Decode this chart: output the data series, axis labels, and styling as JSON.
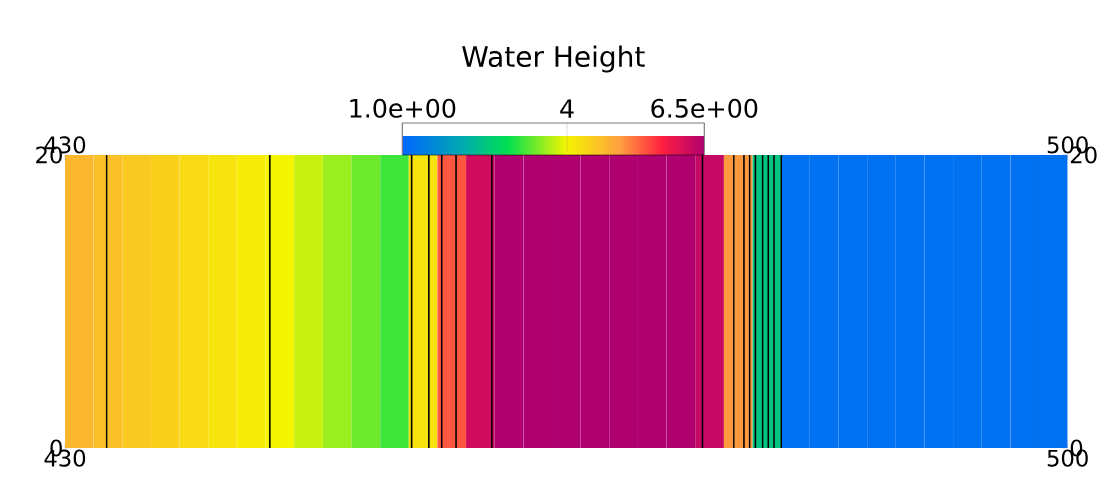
{
  "chart_data": {
    "type": "heatmap",
    "clabel": "Water Height",
    "x": [
      431,
      433,
      435,
      437,
      439,
      441,
      443,
      445,
      447,
      449,
      451,
      453,
      455,
      457,
      459,
      461,
      463,
      465,
      467,
      469,
      471,
      473,
      475,
      477,
      479,
      481,
      483,
      485,
      487,
      489,
      491,
      493,
      495,
      497,
      499
    ],
    "cells": [
      [
        4.7,
        4.6,
        4.5,
        4.4,
        4.3,
        4.2,
        4.1,
        4.0,
        3.8,
        3.6,
        3.4,
        3.2,
        4.2,
        5.4,
        6.2,
        6.5,
        6.5,
        6.5,
        6.5,
        6.5,
        6.5,
        6.5,
        6.3,
        5.0,
        2.5,
        1.2,
        1.2,
        1.2,
        1.2,
        1.2,
        1.2,
        1.2,
        1.2,
        1.2,
        1.2
      ]
    ],
    "clim": [
      1,
      6.5
    ],
    "cticks": [
      {
        "value": 1,
        "label": "1.0e+00"
      },
      4,
      {
        "value": 6.5,
        "label": "6.5e+00"
      }
    ],
    "xlim": [
      430,
      500
    ],
    "xticks": [
      430,
      500
    ],
    "ylim": [
      0,
      20
    ],
    "yticks": [
      0,
      20
    ],
    "x2lim": [
      430,
      500
    ],
    "x2ticks": [
      430,
      500
    ],
    "y2lim": [
      0,
      20
    ],
    "y2ticks": [
      0,
      20
    ],
    "grid": false,
    "ref_lines": [
      {
        "axis": "x",
        "value": 432.9,
        "color": "#000000"
      },
      {
        "axis": "x",
        "value": 444.3,
        "color": "#000000"
      },
      {
        "axis": "x",
        "value": 454.2,
        "color": "#000000"
      },
      {
        "axis": "x",
        "value": 455.4,
        "color": "#000000"
      },
      {
        "axis": "x",
        "value": 456.3,
        "color": "#000000"
      },
      {
        "axis": "x",
        "value": 457.3,
        "color": "#000000"
      },
      {
        "axis": "x",
        "value": 459.8,
        "color": "#000000"
      },
      {
        "axis": "x",
        "value": 474.5,
        "color": "#000000"
      },
      {
        "axis": "x",
        "value": 476.7,
        "color": "#000000"
      },
      {
        "axis": "x",
        "value": 477.4,
        "color": "#000000"
      },
      {
        "axis": "x",
        "value": 477.8,
        "color": "#000000"
      },
      {
        "axis": "x",
        "value": 478.2,
        "color": "#000000"
      },
      {
        "axis": "x",
        "value": 478.7,
        "color": "#000000"
      },
      {
        "axis": "x",
        "value": 479.1,
        "color": "#000000"
      },
      {
        "axis": "x",
        "value": 479.5,
        "color": "#000000"
      },
      {
        "axis": "x",
        "value": 480.0,
        "color": "#000000"
      }
    ]
  }
}
